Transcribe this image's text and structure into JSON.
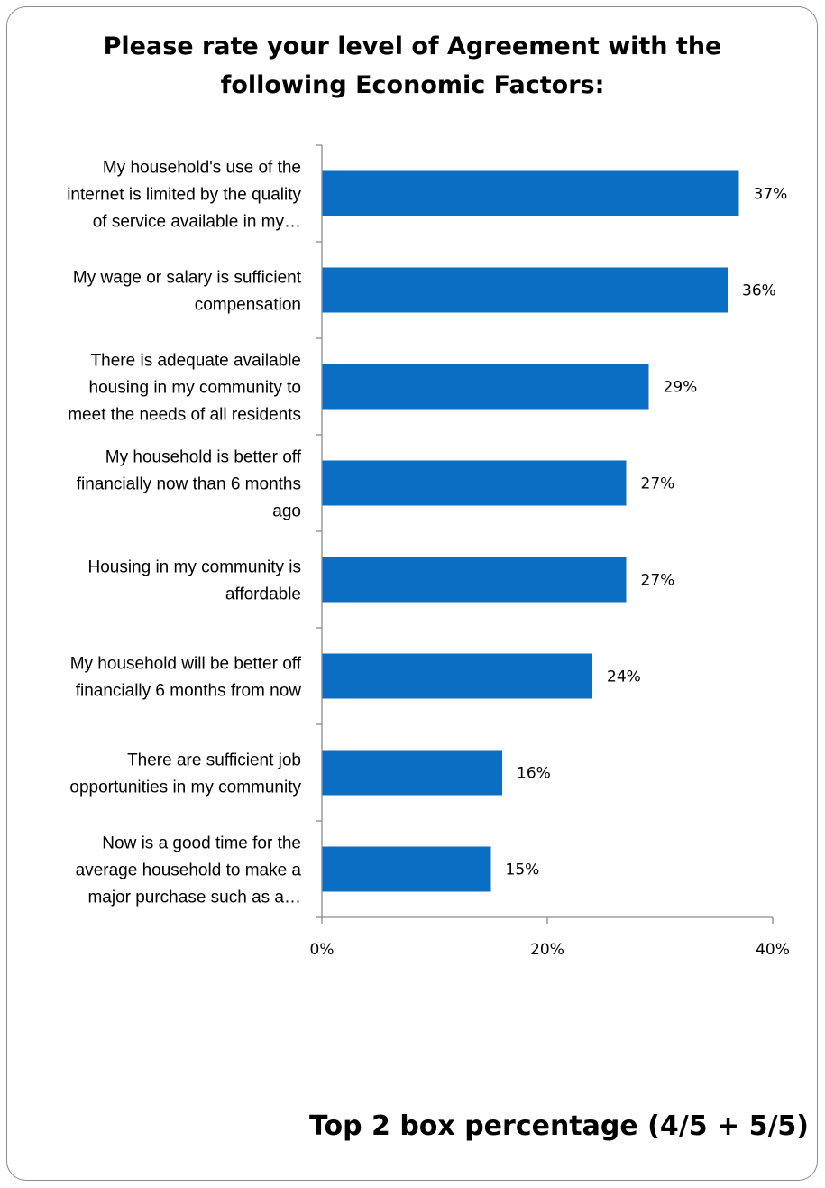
{
  "chart_data": {
    "type": "bar",
    "orientation": "horizontal",
    "title_lines": [
      "Please rate your level of Agreement with the",
      "following Economic Factors:"
    ],
    "categories": [
      [
        "My household's use of the",
        "internet is limited by the quality",
        "of service available in my…"
      ],
      [
        "My wage or salary is sufficient",
        "compensation"
      ],
      [
        "There is adequate available",
        "housing in my community to",
        "meet the needs of all residents"
      ],
      [
        "My household is better off",
        "financially now than 6 months",
        "ago"
      ],
      [
        "Housing in my community is",
        "affordable"
      ],
      [
        "My household will be better off",
        "financially 6 months from now"
      ],
      [
        "There are sufficient job",
        "opportunities in my community"
      ],
      [
        "Now is a good time for the",
        "average household to make a",
        "major purchase such as a…"
      ]
    ],
    "values": [
      37,
      36,
      29,
      27,
      27,
      24,
      16,
      15
    ],
    "data_labels": [
      "37%",
      "36%",
      "29%",
      "27%",
      "27%",
      "24%",
      "16%",
      "15%"
    ],
    "x_ticks": [
      "0%",
      "20%",
      "40%"
    ],
    "xlim": [
      0,
      40
    ],
    "xlabel": "Top 2 box percentage (4/5 + 5/5)",
    "bar_color": "#0a6fc2",
    "grid": false,
    "legend": "none"
  }
}
